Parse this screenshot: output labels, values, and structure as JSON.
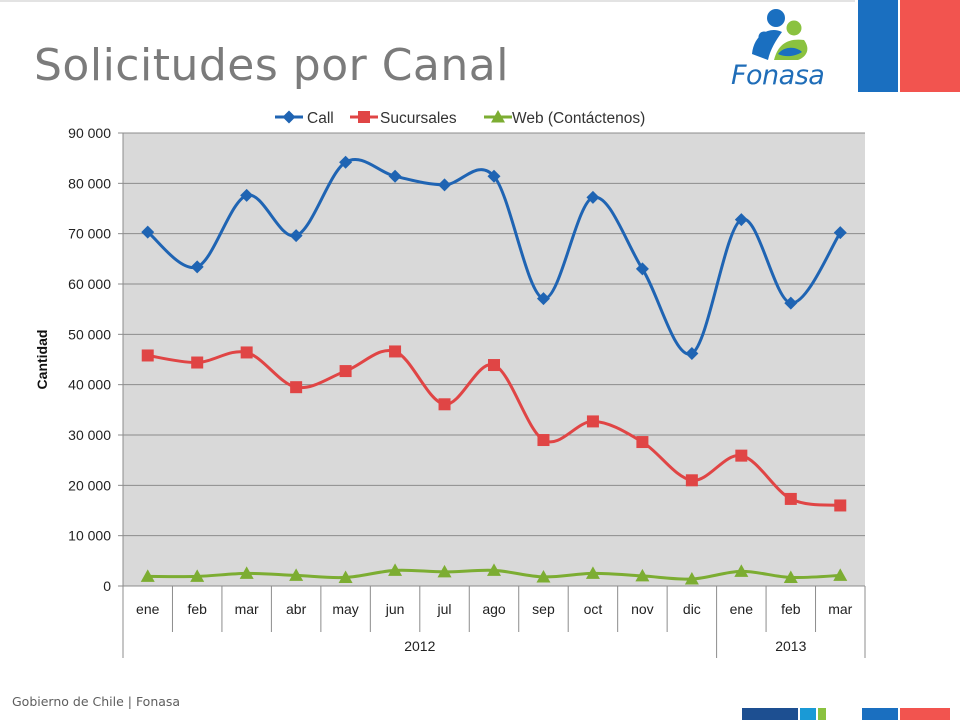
{
  "slide": {
    "title": "Solicitudes por Canal",
    "footer": "Gobierno de Chile | Fonasa",
    "logo_text": "Fonasa"
  },
  "chart_data": {
    "type": "line",
    "title": "",
    "xlabel": "",
    "ylabel": "Cantidad",
    "ylim": [
      0,
      90000
    ],
    "yticks": [
      "0",
      "10 000",
      "20 000",
      "30 000",
      "40 000",
      "50 000",
      "60 000",
      "70 000",
      "80 000",
      "90 000"
    ],
    "categories": [
      "ene",
      "feb",
      "mar",
      "abr",
      "may",
      "jun",
      "jul",
      "ago",
      "sep",
      "oct",
      "nov",
      "dic",
      "ene",
      "feb",
      "mar"
    ],
    "year_groups": [
      {
        "label": "2012",
        "span": 12
      },
      {
        "label": "2013",
        "span": 3
      }
    ],
    "legend_position": "top",
    "grid": true,
    "series": [
      {
        "name": "Call",
        "color": "#1f64b3",
        "marker": "diamond",
        "values": [
          70300,
          63400,
          77600,
          69600,
          84200,
          81400,
          79700,
          81400,
          57100,
          77200,
          63000,
          46200,
          72800,
          56200,
          70200
        ]
      },
      {
        "name": "Sucursales",
        "color": "#e04545",
        "marker": "square",
        "values": [
          45800,
          44400,
          46400,
          39500,
          42700,
          46600,
          36100,
          43900,
          29000,
          32700,
          28600,
          21000,
          25900,
          17300,
          16000
        ]
      },
      {
        "name": "Web (Contáctenos)",
        "color": "#7cad32",
        "marker": "triangle",
        "values": [
          1900,
          1900,
          2500,
          2100,
          1700,
          3100,
          2800,
          3100,
          1800,
          2500,
          2000,
          1400,
          2900,
          1700,
          2100
        ]
      }
    ]
  }
}
